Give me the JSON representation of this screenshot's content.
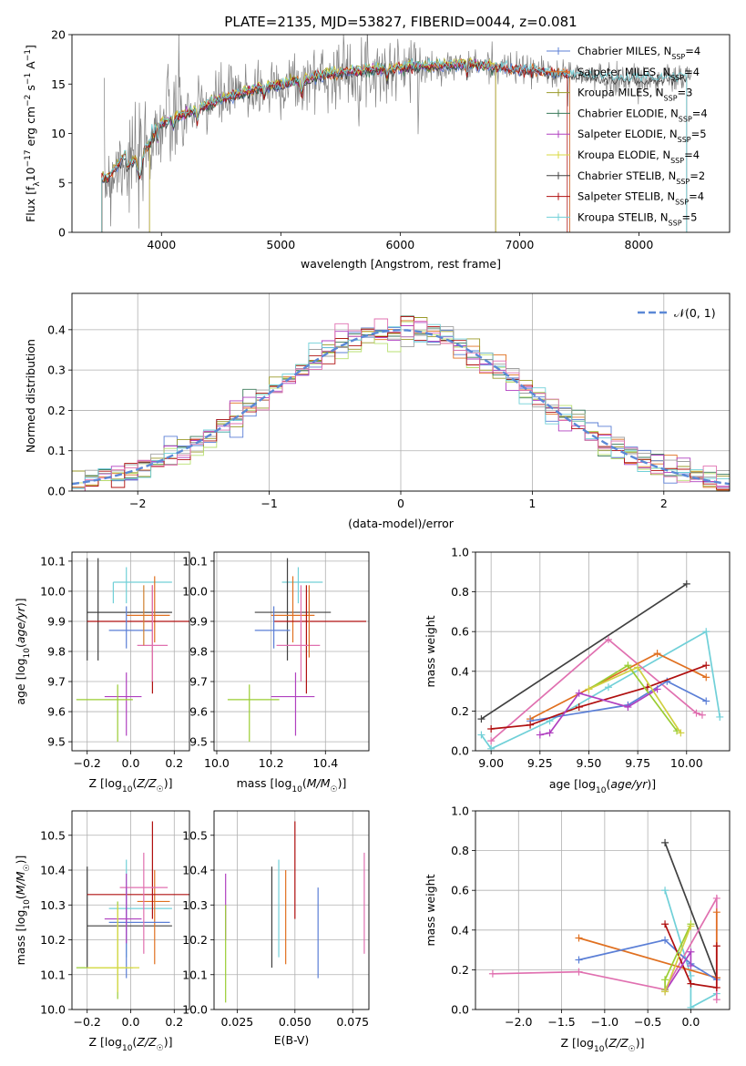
{
  "figure": {
    "title": "PLATE=2135, MJD=53827, FIBERID=0044, z=0.081"
  },
  "chart_data": [
    {
      "id": "spectrum",
      "type": "line",
      "title": "PLATE=2135, MJD=53827, FIBERID=0044, z=0.081",
      "xlabel": "wavelength [Angstrom, rest frame]",
      "ylabel": "Flux [f_λ10^-17 erg cm^-2 s^-1 A^-1]",
      "xlim": [
        3250,
        8760
      ],
      "ylim": [
        0,
        20
      ],
      "xticks": [
        4000,
        5000,
        6000,
        7000,
        8000
      ],
      "yticks": [
        0,
        5,
        10,
        15,
        20
      ],
      "legend_position": "top-right",
      "continuum": {
        "x": [
          3550,
          3700,
          3900,
          4200,
          4500,
          4800,
          5100,
          5400,
          5800,
          6200,
          6600,
          7000,
          7400,
          7800,
          8200,
          8500
        ],
        "y": [
          5.5,
          8.0,
          10.5,
          12.0,
          13.5,
          14.5,
          15.2,
          16.0,
          16.5,
          16.8,
          17.0,
          16.5,
          16.0,
          15.5,
          15.5,
          15.8
        ]
      },
      "series": [
        {
          "name": "Chabrier MILES, N_SSP=4",
          "sub": "SSP",
          "color": "#5b7fd6",
          "pre": "Chabrier MILES, N",
          "post": "=4",
          "xmin": 3500,
          "xmax": 7420
        },
        {
          "name": "Salpeter MILES, N_SSP=4",
          "sub": "SSP",
          "color": "#e07020",
          "pre": "Salpeter MILES, N",
          "post": "=4",
          "xmin": 3500,
          "xmax": 7420
        },
        {
          "name": "Kroupa MILES, N_SSP=3",
          "sub": "SSP",
          "color": "#9a9a2a",
          "pre": "Kroupa MILES, N",
          "post": "=3",
          "xmin": 3500,
          "xmax": 6800
        },
        {
          "name": "Chabrier ELODIE, N_SSP=4",
          "sub": "SSP",
          "color": "#3a7a5a",
          "pre": "Chabrier ELODIE, N",
          "post": "=4",
          "xmin": 3900,
          "xmax": 6800
        },
        {
          "name": "Salpeter ELODIE, N_SSP=5",
          "sub": "SSP",
          "color": "#b040c0",
          "pre": "Salpeter ELODIE, N",
          "post": "=5",
          "xmin": 3900,
          "xmax": 6800
        },
        {
          "name": "Kroupa ELODIE, N_SSP=4",
          "sub": "SSP",
          "color": "#d8d840",
          "pre": "Kroupa ELODIE, N",
          "post": "=4",
          "xmin": 3900,
          "xmax": 6800
        },
        {
          "name": "Chabrier STELIB, N_SSP=2",
          "sub": "SSP",
          "color": "#404040",
          "pre": "Chabrier STELIB, N",
          "post": "=2",
          "xmin": 3500,
          "xmax": 8400
        },
        {
          "name": "Salpeter STELIB, N_SSP=4",
          "sub": "SSP",
          "color": "#b01010",
          "pre": "Salpeter STELIB, N",
          "post": "=4",
          "xmin": 3500,
          "xmax": 7400
        },
        {
          "name": "Kroupa STELIB, N_SSP=5",
          "sub": "SSP",
          "color": "#70d0d8",
          "pre": "Kroupa STELIB, N",
          "post": "=5",
          "xmin": 3500,
          "xmax": 8400
        }
      ]
    },
    {
      "id": "residuals",
      "type": "line",
      "xlabel": "(data-model)/error",
      "ylabel": "Normed distribution",
      "xlim": [
        -2.5,
        2.5
      ],
      "ylim": [
        0,
        0.49
      ],
      "xticks": [
        -2,
        -1,
        0,
        1,
        2
      ],
      "yticks": [
        0.0,
        0.1,
        0.2,
        0.3,
        0.4
      ],
      "grid": true,
      "legend_position": "top-right",
      "legend": "𝒩(0, 1)",
      "gaussian": {
        "mu": 0,
        "sigma": 1,
        "color": "#5b88d6",
        "style": "dashed"
      },
      "series_colors": [
        "#5b7fd6",
        "#e07020",
        "#9a9a2a",
        "#3a7a5a",
        "#b040c0",
        "#b8e070",
        "#a0a0a0",
        "#b01010",
        "#70d0d8",
        "#e070b0"
      ]
    },
    {
      "id": "age_vs_Z",
      "type": "scatter",
      "xlabel": "Z [log10(Z/Z☉)]",
      "ylabel": "age  [log10(age/yr)]",
      "xlim": [
        -0.27,
        0.27
      ],
      "ylim": [
        9.47,
        10.13
      ],
      "xticks": [
        -0.2,
        0.0,
        0.2
      ],
      "yticks": [
        9.5,
        9.6,
        9.7,
        9.8,
        9.9,
        10.0,
        10.1
      ],
      "grid": true,
      "points": [
        {
          "x": -0.08,
          "y": 10.03,
          "xl": -0.08,
          "xh": 0.19,
          "yl": 9.96,
          "yh": 10.03,
          "c": "#70d0d8"
        },
        {
          "x": -0.02,
          "y": 10.03,
          "xl": -0.02,
          "xh": -0.02,
          "yl": 9.96,
          "yh": 10.08,
          "c": "#70d0d8"
        },
        {
          "x": -0.2,
          "y": 9.93,
          "xl": -0.2,
          "xh": 0.19,
          "yl": 9.77,
          "yh": 10.11,
          "c": "#404040"
        },
        {
          "x": -0.15,
          "y": 9.93,
          "xl": -0.2,
          "xh": 0.19,
          "yl": 9.77,
          "yh": 10.11,
          "c": "#404040"
        },
        {
          "x": 0.11,
          "y": 9.92,
          "xl": -0.02,
          "xh": 0.18,
          "yl": 9.83,
          "yh": 10.05,
          "c": "#e07020"
        },
        {
          "x": 0.1,
          "y": 9.9,
          "xl": -0.2,
          "xh": 0.27,
          "yl": 9.66,
          "yh": 10.02,
          "c": "#b01010"
        },
        {
          "x": -0.02,
          "y": 9.87,
          "xl": -0.1,
          "xh": 0.1,
          "yl": 9.81,
          "yh": 9.95,
          "c": "#5b7fd6"
        },
        {
          "x": 0.1,
          "y": 9.82,
          "xl": 0.03,
          "xh": 0.17,
          "yl": 9.7,
          "yh": 10.02,
          "c": "#e070b0"
        },
        {
          "x": -0.02,
          "y": 9.65,
          "xl": -0.12,
          "xh": 0.05,
          "yl": 9.52,
          "yh": 9.73,
          "c": "#b040c0"
        },
        {
          "x": -0.06,
          "y": 9.64,
          "xl": -0.25,
          "xh": 0.01,
          "yl": 9.5,
          "yh": 9.69,
          "c": "#9acd32"
        },
        {
          "x": 0.06,
          "y": 9.91,
          "xl": 0.06,
          "xh": 0.06,
          "yl": 9.82,
          "yh": 10.02,
          "c": "#d08030"
        }
      ]
    },
    {
      "id": "age_vs_mass",
      "type": "scatter",
      "xlabel": "mass [log10(M/M☉)]",
      "xlim": [
        9.99,
        10.56
      ],
      "ylim": [
        9.47,
        10.13
      ],
      "xticks": [
        10.0,
        10.2,
        10.4
      ],
      "yticks": [
        9.5,
        9.6,
        9.7,
        9.8,
        9.9,
        10.0,
        10.1
      ],
      "grid": true,
      "points": [
        {
          "x": 10.3,
          "y": 10.03,
          "xl": 10.24,
          "xh": 10.39,
          "yl": 9.96,
          "yh": 10.08,
          "c": "#70d0d8"
        },
        {
          "x": 10.26,
          "y": 9.93,
          "xl": 10.14,
          "xh": 10.42,
          "yl": 9.77,
          "yh": 10.11,
          "c": "#404040"
        },
        {
          "x": 10.28,
          "y": 9.92,
          "xl": 10.2,
          "xh": 10.36,
          "yl": 9.83,
          "yh": 10.05,
          "c": "#e07020"
        },
        {
          "x": 10.33,
          "y": 9.9,
          "xl": 10.21,
          "xh": 10.55,
          "yl": 9.66,
          "yh": 10.02,
          "c": "#b01010"
        },
        {
          "x": 10.21,
          "y": 9.87,
          "xl": 10.14,
          "xh": 10.27,
          "yl": 9.81,
          "yh": 9.95,
          "c": "#5b7fd6"
        },
        {
          "x": 10.31,
          "y": 9.82,
          "xl": 10.22,
          "xh": 10.38,
          "yl": 9.7,
          "yh": 10.02,
          "c": "#e070b0"
        },
        {
          "x": 10.29,
          "y": 9.65,
          "xl": 10.2,
          "xh": 10.36,
          "yl": 9.52,
          "yh": 9.73,
          "c": "#b040c0"
        },
        {
          "x": 10.12,
          "y": 9.64,
          "xl": 10.04,
          "xh": 10.23,
          "yl": 9.5,
          "yh": 9.69,
          "c": "#9acd32"
        },
        {
          "x": 10.34,
          "y": 9.86,
          "xl": 10.34,
          "xh": 10.34,
          "yl": 9.78,
          "yh": 10.02,
          "c": "#e07020"
        }
      ]
    },
    {
      "id": "weight_vs_age",
      "type": "line",
      "xlabel": "age  [log10(age/yr)]",
      "ylabel": "mass weight",
      "xlim": [
        8.92,
        10.22
      ],
      "ylim": [
        0,
        1
      ],
      "xticks": [
        9.0,
        9.25,
        9.5,
        9.75,
        10.0
      ],
      "yticks": [
        0.0,
        0.2,
        0.4,
        0.6,
        0.8,
        1.0
      ],
      "grid": true,
      "series": [
        {
          "c": "#404040",
          "x": [
            8.95,
            10.0
          ],
          "y": [
            0.16,
            0.84
          ]
        },
        {
          "c": "#70d0d8",
          "x": [
            8.95,
            9.0,
            9.3,
            9.6,
            10.1,
            10.17
          ],
          "y": [
            0.08,
            0.01,
            0.15,
            0.32,
            0.6,
            0.17
          ]
        },
        {
          "c": "#e070b0",
          "x": [
            9.0,
            9.6,
            10.05,
            10.08
          ],
          "y": [
            0.05,
            0.56,
            0.19,
            0.18
          ]
        },
        {
          "c": "#e07020",
          "x": [
            9.2,
            9.85,
            10.1
          ],
          "y": [
            0.16,
            0.49,
            0.37
          ]
        },
        {
          "c": "#5b7fd6",
          "x": [
            9.2,
            9.7,
            9.9,
            10.1
          ],
          "y": [
            0.15,
            0.23,
            0.35,
            0.25
          ]
        },
        {
          "c": "#b01010",
          "x": [
            9.0,
            9.2,
            9.45,
            9.8,
            10.1
          ],
          "y": [
            0.11,
            0.13,
            0.22,
            0.32,
            0.43
          ]
        },
        {
          "c": "#9acd32",
          "x": [
            9.5,
            9.7,
            9.95
          ],
          "y": [
            0.31,
            0.43,
            0.1
          ]
        },
        {
          "c": "#b040c0",
          "x": [
            9.25,
            9.3,
            9.45,
            9.7,
            9.85
          ],
          "y": [
            0.08,
            0.09,
            0.29,
            0.22,
            0.31
          ]
        },
        {
          "c": "#d0d040",
          "x": [
            9.5,
            9.75,
            9.97
          ],
          "y": [
            0.31,
            0.42,
            0.09
          ]
        }
      ]
    },
    {
      "id": "mass_vs_Z",
      "type": "scatter",
      "xlabel": "Z [log10(Z/Z☉)]",
      "ylabel": "mass [log10(M/M☉)]",
      "xlim": [
        -0.27,
        0.27
      ],
      "ylim": [
        10.0,
        10.57
      ],
      "xticks": [
        -0.2,
        0.0,
        0.2
      ],
      "yticks": [
        10.0,
        10.1,
        10.2,
        10.3,
        10.4,
        10.5
      ],
      "grid": true,
      "points": [
        {
          "x": -0.02,
          "y": 10.29,
          "xl": -0.1,
          "xh": 0.19,
          "yl": 10.15,
          "yh": 10.43,
          "c": "#70d0d8"
        },
        {
          "x": -0.2,
          "y": 10.24,
          "xl": -0.2,
          "xh": 0.19,
          "yl": 10.12,
          "yh": 10.41,
          "c": "#404040"
        },
        {
          "x": 0.11,
          "y": 10.31,
          "xl": 0.03,
          "xh": 0.18,
          "yl": 10.13,
          "yh": 10.4,
          "c": "#e07020"
        },
        {
          "x": 0.1,
          "y": 10.33,
          "xl": -0.2,
          "xh": 0.27,
          "yl": 10.26,
          "yh": 10.54,
          "c": "#b01010"
        },
        {
          "x": -0.02,
          "y": 10.25,
          "xl": -0.1,
          "xh": 0.18,
          "yl": 10.09,
          "yh": 10.35,
          "c": "#5b7fd6"
        },
        {
          "x": 0.06,
          "y": 10.35,
          "xl": -0.05,
          "xh": 0.17,
          "yl": 10.16,
          "yh": 10.45,
          "c": "#e070b0"
        },
        {
          "x": -0.02,
          "y": 10.26,
          "xl": -0.12,
          "xh": 0.05,
          "yl": 10.19,
          "yh": 10.39,
          "c": "#b040c0"
        },
        {
          "x": -0.06,
          "y": 10.12,
          "xl": -0.25,
          "xh": 0.01,
          "yl": 10.03,
          "yh": 10.31,
          "c": "#9acd32"
        },
        {
          "x": -0.06,
          "y": 10.12,
          "xl": -0.2,
          "xh": 0.04,
          "yl": 10.05,
          "yh": 10.3,
          "c": "#d8d840"
        }
      ]
    },
    {
      "id": "mass_vs_ebv",
      "type": "scatter",
      "xlabel": "E(B-V)",
      "xlim": [
        0.015,
        0.082
      ],
      "ylim": [
        10.0,
        10.57
      ],
      "xticks": [
        0.025,
        0.05,
        0.075
      ],
      "yticks": [
        10.0,
        10.1,
        10.2,
        10.3,
        10.4,
        10.5
      ],
      "grid": true,
      "points": [
        {
          "x": 0.02,
          "y": 10.3,
          "yl": 10.2,
          "yh": 10.39,
          "c": "#b040c0"
        },
        {
          "x": 0.02,
          "y": 10.15,
          "yl": 10.02,
          "yh": 10.3,
          "c": "#9acd32"
        },
        {
          "x": 0.04,
          "y": 10.25,
          "yl": 10.12,
          "yh": 10.41,
          "c": "#404040"
        },
        {
          "x": 0.043,
          "y": 10.3,
          "yl": 10.15,
          "yh": 10.43,
          "c": "#70d0d8"
        },
        {
          "x": 0.046,
          "y": 10.25,
          "yl": 10.13,
          "yh": 10.4,
          "c": "#e07020"
        },
        {
          "x": 0.05,
          "y": 10.4,
          "yl": 10.26,
          "yh": 10.54,
          "c": "#b01010"
        },
        {
          "x": 0.06,
          "y": 10.25,
          "yl": 10.09,
          "yh": 10.35,
          "c": "#5b7fd6"
        },
        {
          "x": 0.08,
          "y": 10.3,
          "yl": 10.16,
          "yh": 10.45,
          "c": "#e070b0"
        }
      ]
    },
    {
      "id": "weight_vs_Z",
      "type": "line",
      "xlabel": "Z [log10(Z/Z☉)]",
      "ylabel": "mass weight",
      "xlim": [
        -2.5,
        0.45
      ],
      "ylim": [
        0,
        1
      ],
      "xticks": [
        -2.0,
        -1.5,
        -1.0,
        -0.5,
        0.0
      ],
      "yticks": [
        0.0,
        0.2,
        0.4,
        0.6,
        0.8,
        1.0
      ],
      "grid": true,
      "series": [
        {
          "c": "#404040",
          "x": [
            -0.3,
            0.3
          ],
          "y": [
            0.84,
            0.16
          ]
        },
        {
          "c": "#70d0d8",
          "x": [
            -0.3,
            0.0,
            0.0,
            0.3
          ],
          "y": [
            0.6,
            0.17,
            0.01,
            0.08
          ]
        },
        {
          "c": "#e070b0",
          "x": [
            -2.3,
            -1.3,
            -0.3,
            0.3,
            0.3
          ],
          "y": [
            0.18,
            0.19,
            0.1,
            0.56,
            0.05
          ]
        },
        {
          "c": "#e07020",
          "x": [
            -1.3,
            0.3,
            0.3
          ],
          "y": [
            0.36,
            0.16,
            0.49
          ]
        },
        {
          "c": "#5b7fd6",
          "x": [
            -1.3,
            -0.3,
            0.0,
            0.3
          ],
          "y": [
            0.25,
            0.35,
            0.23,
            0.15
          ]
        },
        {
          "c": "#b01010",
          "x": [
            -0.3,
            0.0,
            0.3,
            0.3
          ],
          "y": [
            0.43,
            0.13,
            0.11,
            0.32
          ]
        },
        {
          "c": "#9acd32",
          "x": [
            -0.3,
            -0.3,
            0.0
          ],
          "y": [
            0.1,
            0.15,
            0.43
          ]
        },
        {
          "c": "#b040c0",
          "x": [
            -0.3,
            0.0,
            0.0
          ],
          "y": [
            0.09,
            0.29,
            0.22
          ]
        },
        {
          "c": "#d0d040",
          "x": [
            -0.3,
            0.0
          ],
          "y": [
            0.09,
            0.42
          ]
        }
      ]
    }
  ]
}
